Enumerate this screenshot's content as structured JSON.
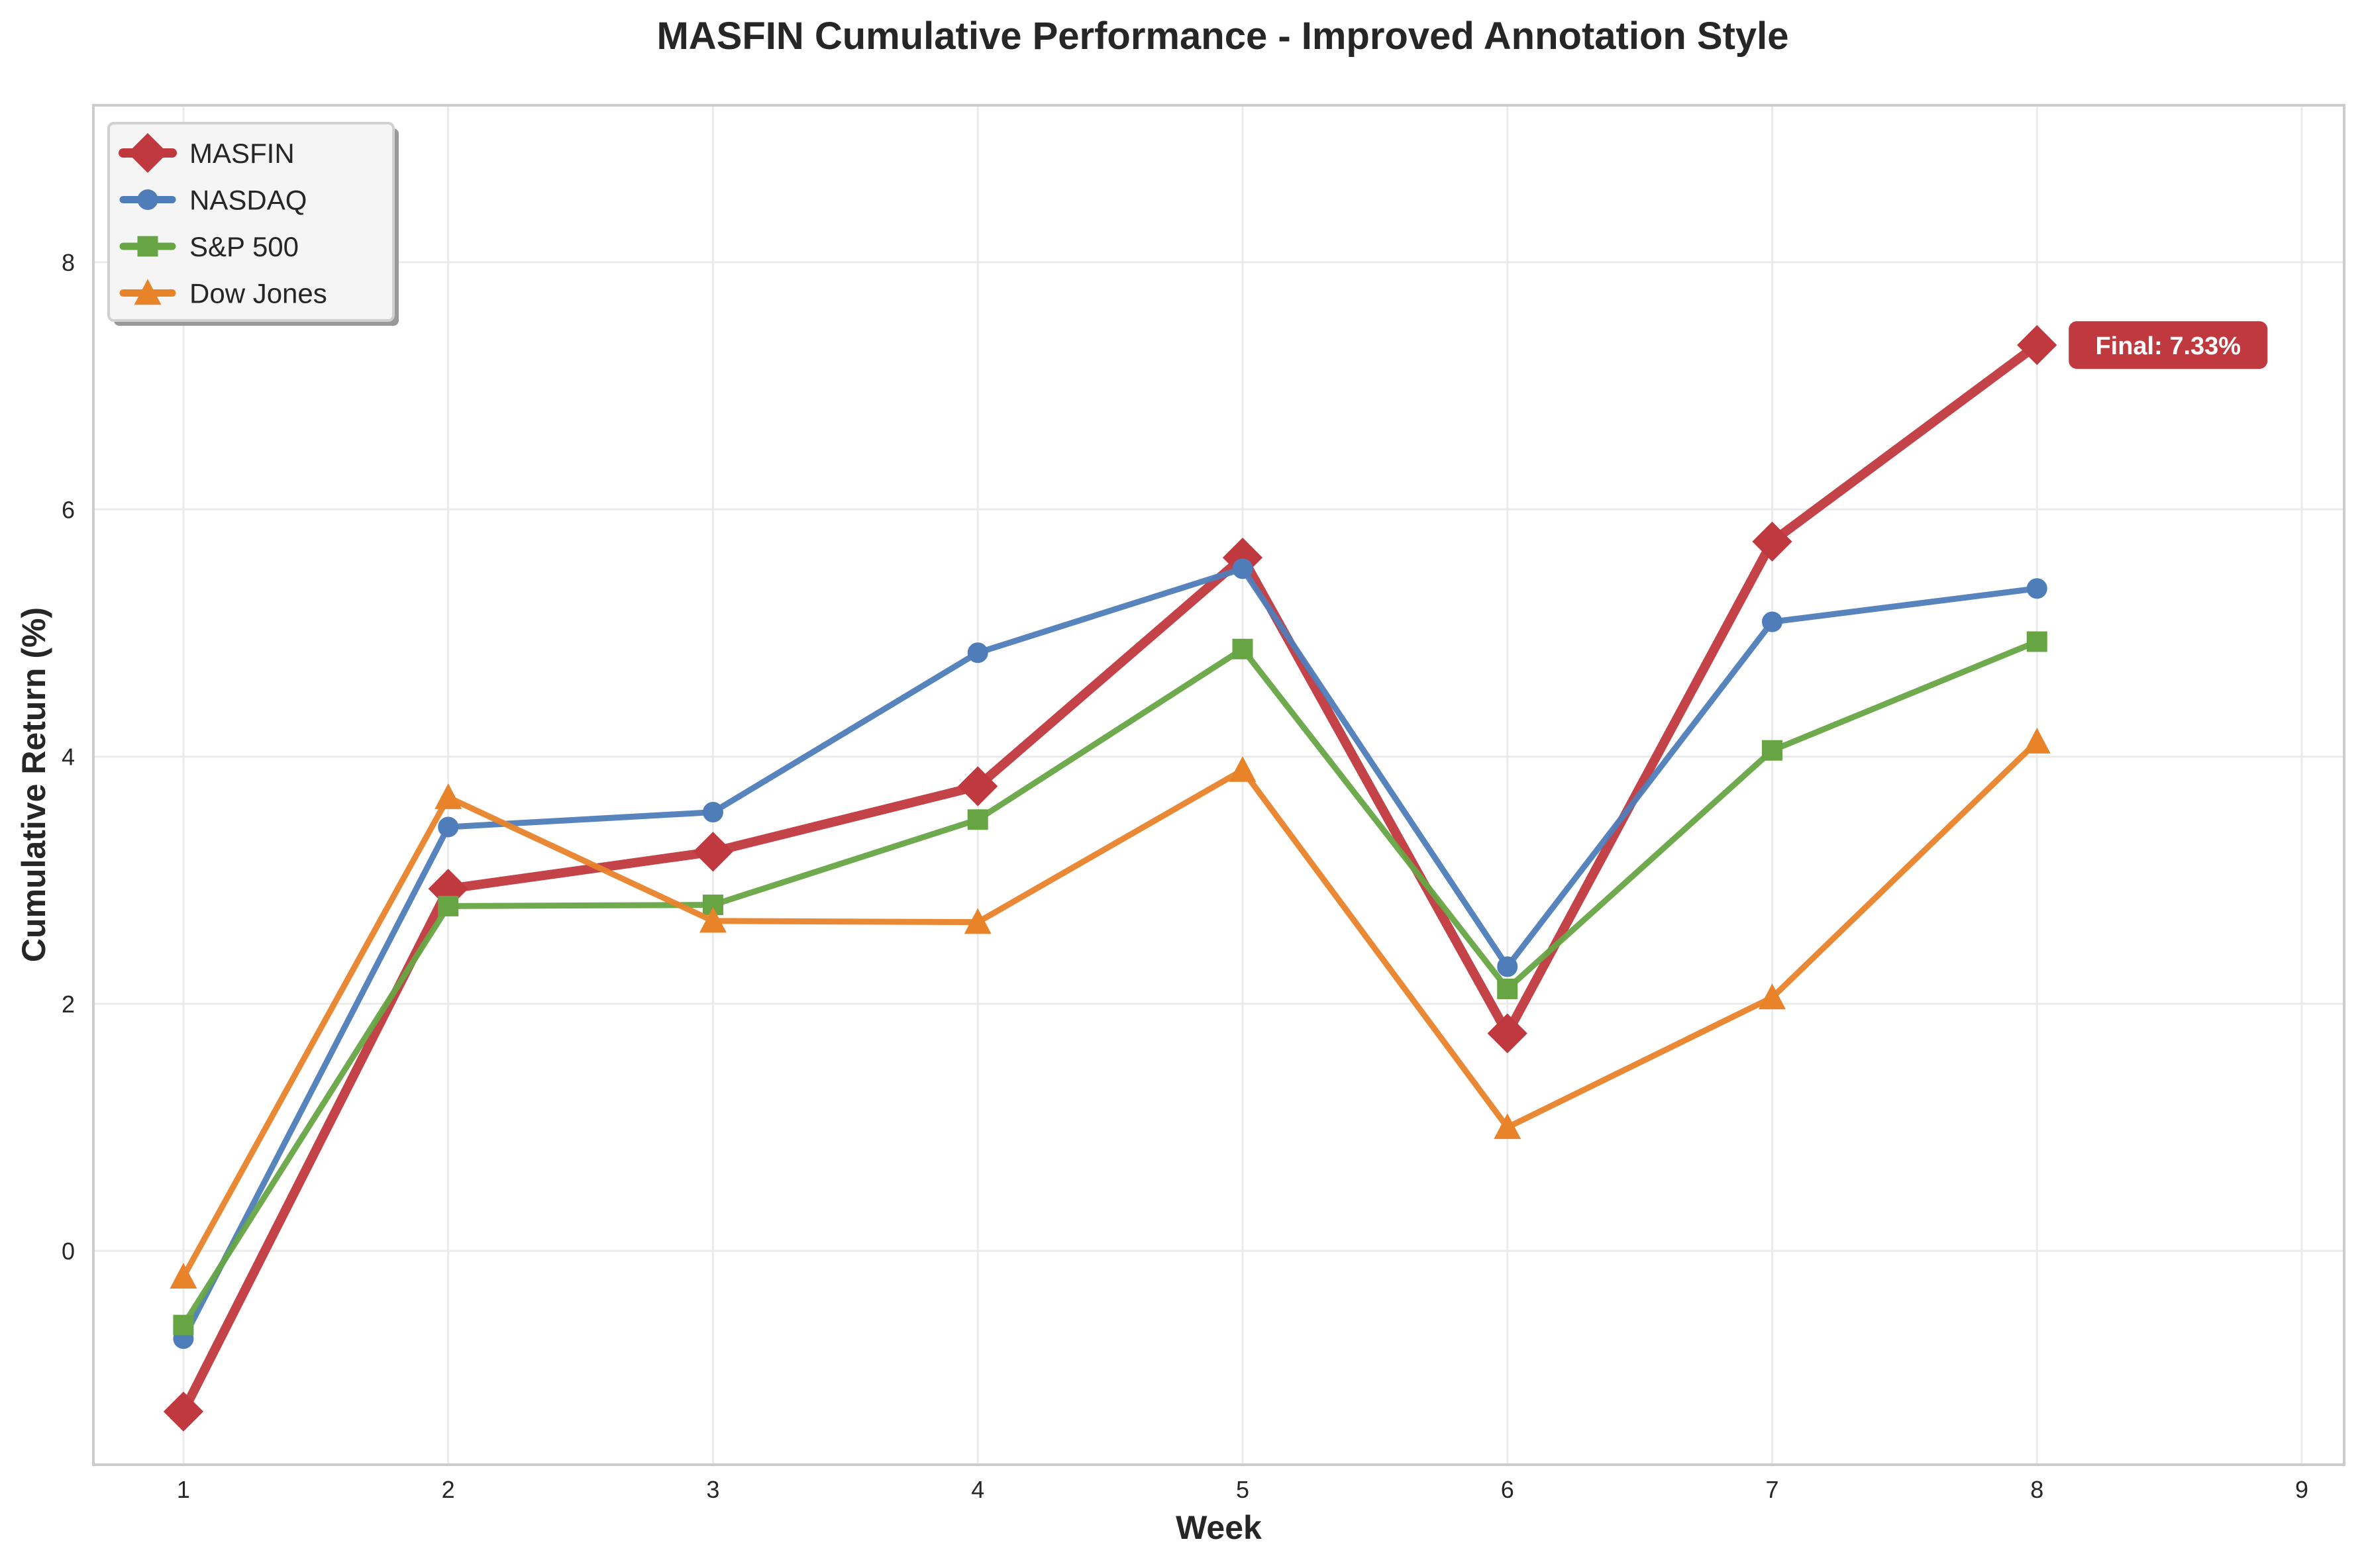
{
  "chart_data": {
    "type": "line",
    "title": "MASFIN Cumulative Performance - Improved Annotation Style",
    "xlabel": "Week",
    "ylabel": "Cumulative Return (%)",
    "x": [
      1,
      2,
      3,
      4,
      5,
      6,
      7,
      8
    ],
    "xlim": [
      0.66,
      9.16
    ],
    "ylim": [
      -1.73,
      9.27
    ],
    "xticks": [
      1,
      2,
      3,
      4,
      5,
      6,
      7,
      8,
      9
    ],
    "yticks": [
      0,
      2,
      4,
      6,
      8
    ],
    "grid": true,
    "legend_position": "top-left",
    "series": [
      {
        "name": "MASFIN",
        "color": "#c0393f",
        "marker": "diamond",
        "values": [
          -1.3,
          2.93,
          3.23,
          3.76,
          5.61,
          1.76,
          5.74,
          7.33
        ]
      },
      {
        "name": "NASDAQ",
        "color": "#4f7dba",
        "marker": "circle",
        "values": [
          -0.71,
          3.43,
          3.55,
          4.84,
          5.52,
          2.3,
          5.09,
          5.36
        ]
      },
      {
        "name": "S&P 500",
        "color": "#67a544",
        "marker": "square",
        "values": [
          -0.6,
          2.79,
          2.8,
          3.49,
          4.87,
          2.12,
          4.05,
          4.93
        ]
      },
      {
        "name": "Dow Jones",
        "color": "#e8832a",
        "marker": "triangle",
        "values": [
          -0.21,
          3.67,
          2.67,
          2.66,
          3.89,
          1.0,
          2.05,
          4.12
        ]
      }
    ],
    "annotations": [
      {
        "text": "Final: 7.33%",
        "series": "MASFIN",
        "x": 8,
        "y": 7.33,
        "background": "#c0393f"
      }
    ]
  }
}
